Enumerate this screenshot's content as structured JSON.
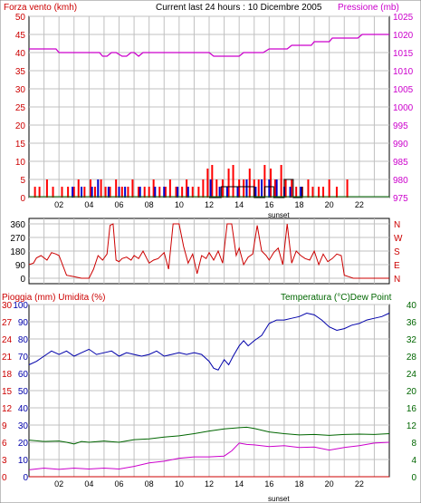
{
  "colors": {
    "wind": "#cc0000",
    "wind_gust": "#ff0000",
    "wind_avg": "#0000cc",
    "pressure": "#cc00cc",
    "rain": "#cc0000",
    "humidity": "#0000aa",
    "temperature": "#006600",
    "dewpoint": "#cc00cc",
    "direction": "#cc0000",
    "grid": "#c0c0c0",
    "frame": "#000000"
  },
  "header": {
    "left_label": "Forza vento (kmh)",
    "center_label": "Current last 24 hours : 10 Dicembre 2005",
    "right_label": "Pressione (mb)"
  },
  "time_ticks": [
    "02",
    "04",
    "06",
    "08",
    "10",
    "12",
    "14",
    "16",
    "18",
    "20",
    "22"
  ],
  "sunset_label": "sunset",
  "chart_data": [
    {
      "type": "bar",
      "title": "Current last 24 hours : 10 Dicembre 2005",
      "ylabel": "Forza vento (kmh)",
      "ylabel_right": "Pressione (mb)",
      "ylim": [
        0,
        50
      ],
      "ylim_right": [
        975,
        1025
      ],
      "yticks": [
        0,
        5,
        10,
        15,
        20,
        25,
        30,
        35,
        40,
        45,
        50
      ],
      "yticks_right": [
        975,
        980,
        985,
        990,
        995,
        1000,
        1005,
        1010,
        1015,
        1020,
        1025
      ],
      "xlim": [
        0,
        24
      ],
      "grid": true,
      "series": [
        {
          "key": "wind_gust",
          "type": "bar",
          "x": [
            0.4,
            0.7,
            1.2,
            1.6,
            2.2,
            2.6,
            3.0,
            3.3,
            3.7,
            4.1,
            4.4,
            4.8,
            5.1,
            5.4,
            5.8,
            6.2,
            6.6,
            6.9,
            7.3,
            7.7,
            8.0,
            8.3,
            8.7,
            9.1,
            9.4,
            9.8,
            10.2,
            10.5,
            10.9,
            11.3,
            11.6,
            11.9,
            12.2,
            12.5,
            12.9,
            13.3,
            13.6,
            14.0,
            14.3,
            14.7,
            15.0,
            15.3,
            15.7,
            16.1,
            16.4,
            16.8,
            17.1,
            17.5,
            17.8,
            18.2,
            18.6,
            18.9,
            19.3,
            19.6,
            20.0,
            20.5,
            21.2
          ],
          "values": [
            3,
            3,
            5,
            3,
            3,
            3,
            3,
            5,
            3,
            5,
            3,
            5,
            3,
            3,
            5,
            3,
            3,
            5,
            3,
            3,
            3,
            5,
            3,
            3,
            5,
            3,
            3,
            5,
            3,
            3,
            5,
            8,
            9,
            5,
            5,
            8,
            9,
            5,
            5,
            8,
            5,
            5,
            9,
            8,
            5,
            9,
            5,
            5,
            3,
            3,
            5,
            3,
            3,
            3,
            5,
            3,
            5
          ]
        },
        {
          "key": "wind_avg",
          "type": "bar",
          "x": [
            2.9,
            3.5,
            4.2,
            4.6,
            5.3,
            6.0,
            6.4,
            7.4,
            8.4,
            9.0,
            9.9,
            10.6,
            12.1,
            12.7,
            13.2,
            13.9,
            14.5,
            15.1,
            15.5,
            16.0,
            16.5,
            17.0,
            17.4,
            18.1
          ],
          "values": [
            3,
            3,
            3,
            5,
            3,
            3,
            3,
            3,
            3,
            3,
            3,
            3,
            5,
            3,
            3,
            3,
            5,
            3,
            5,
            5,
            5,
            3,
            3,
            3
          ]
        },
        {
          "key": "wind_steps",
          "type": "line",
          "x": [
            12.0,
            12.8,
            13.4,
            14.3,
            15.0,
            15.7,
            16.3,
            17.0,
            17.6,
            18.2
          ],
          "values": [
            0,
            3,
            3,
            3,
            0,
            3,
            0,
            5,
            0,
            3
          ]
        },
        {
          "key": "pressure",
          "axis": "right",
          "type": "line",
          "x": [
            0,
            1.8,
            2.0,
            4.7,
            4.9,
            5.2,
            5.5,
            5.8,
            6.2,
            6.5,
            6.8,
            7.0,
            7.3,
            7.6,
            12.0,
            12.3,
            14.0,
            14.3,
            15.6,
            16.0,
            16.3,
            17.2,
            17.5,
            18.8,
            19.0,
            20.0,
            20.2,
            21.9,
            22.2,
            24.0
          ],
          "values": [
            1016,
            1016,
            1015,
            1015,
            1014,
            1014,
            1015,
            1015,
            1014,
            1014,
            1015,
            1015,
            1014,
            1015,
            1015,
            1014,
            1014,
            1015,
            1015,
            1016,
            1016,
            1016,
            1017,
            1017,
            1018,
            1018,
            1019,
            1019,
            1020,
            1020
          ]
        }
      ]
    },
    {
      "type": "line",
      "ylim": [
        0,
        360
      ],
      "yticks": [
        0,
        90,
        180,
        270,
        360
      ],
      "right_labels": [
        "N",
        "W",
        "S",
        "E",
        "N"
      ],
      "xlim": [
        0,
        24
      ],
      "grid": true,
      "series": [
        {
          "key": "direction",
          "x": [
            0.0,
            0.3,
            0.5,
            0.8,
            1.2,
            1.5,
            1.8,
            2.0,
            2.5,
            3.0,
            3.5,
            4.0,
            4.3,
            4.6,
            4.9,
            5.2,
            5.4,
            5.6,
            5.8,
            6.0,
            6.2,
            6.5,
            6.8,
            7.0,
            7.3,
            7.6,
            8.0,
            8.3,
            8.6,
            9.0,
            9.3,
            9.6,
            10.0,
            10.3,
            10.6,
            10.9,
            11.2,
            11.5,
            11.8,
            12.0,
            12.3,
            12.6,
            12.9,
            13.2,
            13.5,
            13.8,
            14.0,
            14.3,
            14.6,
            14.9,
            15.2,
            15.5,
            15.8,
            16.0,
            16.3,
            16.6,
            16.9,
            17.2,
            17.5,
            17.8,
            18.1,
            18.4,
            18.7,
            19.0,
            19.3,
            19.6,
            19.9,
            20.2,
            20.5,
            20.8,
            21.0,
            21.3,
            21.6,
            22.0,
            22.5,
            23.0,
            23.5,
            24.0
          ],
          "values": [
            90,
            100,
            135,
            150,
            120,
            170,
            160,
            150,
            20,
            10,
            0,
            0,
            60,
            150,
            120,
            160,
            350,
            360,
            120,
            110,
            130,
            140,
            120,
            150,
            130,
            180,
            100,
            120,
            130,
            170,
            60,
            360,
            360,
            210,
            100,
            160,
            30,
            150,
            130,
            170,
            120,
            180,
            100,
            360,
            360,
            150,
            200,
            90,
            140,
            160,
            350,
            180,
            150,
            120,
            170,
            200,
            90,
            360,
            100,
            180,
            150,
            130,
            120,
            180,
            90,
            160,
            110,
            130,
            160,
            150,
            20,
            10,
            0,
            0,
            0,
            0,
            0,
            0
          ]
        }
      ]
    },
    {
      "type": "line",
      "ylabel": "Pioggia (mm)  Umidita (%)",
      "ylabel_right": "Temperatura (°C)Dew Point",
      "ylim_rain": [
        0,
        30
      ],
      "yticks_rain": [
        0,
        3,
        6,
        9,
        12,
        15,
        18,
        21,
        24,
        27,
        30
      ],
      "ylim_humidity": [
        0,
        100
      ],
      "yticks_humidity": [
        0,
        10,
        20,
        30,
        40,
        50,
        60,
        70,
        80,
        90,
        100
      ],
      "ylim_temp": [
        0,
        40
      ],
      "yticks_temp": [
        0,
        4,
        8,
        12,
        16,
        20,
        24,
        28,
        32,
        36,
        40
      ],
      "xlim": [
        0,
        24
      ],
      "grid": true,
      "series": [
        {
          "key": "humidity",
          "axis": "humidity",
          "x": [
            0,
            0.5,
            1.0,
            1.5,
            2.0,
            2.5,
            3.0,
            3.5,
            4.0,
            4.5,
            5.0,
            5.5,
            6.0,
            6.5,
            7.0,
            7.5,
            8.0,
            8.5,
            9.0,
            9.5,
            10.0,
            10.5,
            11.0,
            11.5,
            12.0,
            12.3,
            12.6,
            13.0,
            13.3,
            13.6,
            14.0,
            14.3,
            14.6,
            15.0,
            15.5,
            16.0,
            16.5,
            17.0,
            17.5,
            18.0,
            18.5,
            19.0,
            19.5,
            20.0,
            20.5,
            21.0,
            21.5,
            22.0,
            22.5,
            23.0,
            23.5,
            24.0
          ],
          "values": [
            65,
            67,
            70,
            73,
            71,
            73,
            70,
            72,
            74,
            71,
            72,
            73,
            70,
            72,
            71,
            70,
            71,
            73,
            70,
            71,
            72,
            71,
            72,
            71,
            67,
            63,
            62,
            68,
            65,
            70,
            76,
            79,
            76,
            79,
            82,
            89,
            91,
            91,
            92,
            93,
            95,
            94,
            91,
            87,
            85,
            86,
            88,
            89,
            91,
            92,
            93,
            95
          ]
        },
        {
          "key": "temperature",
          "axis": "temp",
          "x": [
            0,
            1.0,
            2.0,
            2.5,
            3.0,
            3.5,
            4.0,
            5.0,
            6.0,
            7.0,
            8.0,
            9.0,
            10.0,
            11.0,
            12.0,
            13.0,
            14.0,
            14.5,
            15.0,
            16.0,
            17.0,
            18.0,
            19.0,
            20.0,
            21.0,
            22.0,
            23.0,
            24.0
          ],
          "values": [
            8.5,
            8.2,
            8.3,
            8.0,
            7.6,
            8.2,
            8.0,
            8.3,
            8.0,
            8.6,
            8.8,
            9.2,
            9.5,
            10.0,
            10.6,
            11.1,
            11.4,
            11.5,
            11.2,
            10.4,
            10.0,
            9.7,
            9.8,
            9.6,
            9.8,
            9.9,
            9.8,
            10.0
          ]
        },
        {
          "key": "dewpoint",
          "axis": "temp",
          "x": [
            0,
            1.0,
            2.0,
            3.0,
            4.0,
            5.0,
            6.0,
            7.0,
            8.0,
            9.0,
            10.0,
            11.0,
            12.0,
            13.0,
            13.5,
            14.0,
            14.5,
            15.0,
            16.0,
            17.0,
            18.0,
            19.0,
            20.0,
            21.0,
            22.0,
            23.0,
            24.0
          ],
          "values": [
            1.6,
            2.0,
            1.7,
            2.0,
            1.8,
            2.0,
            1.8,
            2.4,
            3.2,
            3.6,
            4.3,
            4.6,
            4.6,
            4.8,
            6.0,
            7.8,
            7.5,
            7.4,
            7.0,
            7.2,
            6.8,
            6.9,
            6.2,
            6.8,
            7.2,
            7.8,
            8.0
          ]
        },
        {
          "key": "rain",
          "axis": "rain",
          "x": [
            0,
            24
          ],
          "values": [
            0,
            0
          ]
        }
      ]
    }
  ]
}
